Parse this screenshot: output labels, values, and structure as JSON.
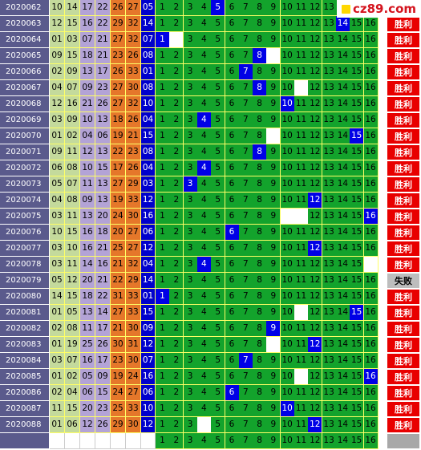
{
  "logo": {
    "text": "cz89.com",
    "icon": "yellow-square-icon"
  },
  "colors": {
    "green": "#13a32c",
    "hit": "#0000e6",
    "win": "#e80000",
    "period": "#5a5a8c",
    "gridline": "#ffff66"
  },
  "labels": {
    "win": "胜利",
    "loss": "失败"
  },
  "rows": [
    {
      "period": "2020062",
      "nums": [
        "10",
        "14",
        "17",
        "22",
        "26",
        "27"
      ],
      "blue": "05",
      "hit": 5,
      "blank": [],
      "result": ""
    },
    {
      "period": "2020063",
      "nums": [
        "12",
        "15",
        "16",
        "22",
        "29",
        "32"
      ],
      "blue": "14",
      "hit": 14,
      "blank": [],
      "result": "win"
    },
    {
      "period": "2020064",
      "nums": [
        "01",
        "03",
        "07",
        "21",
        "27",
        "32"
      ],
      "blue": "07",
      "hit": 1,
      "blank": [
        2
      ],
      "result": "win"
    },
    {
      "period": "2020065",
      "nums": [
        "09",
        "15",
        "18",
        "21",
        "23",
        "26"
      ],
      "blue": "08",
      "hit": 8,
      "blank": [
        9
      ],
      "result": "win"
    },
    {
      "period": "2020066",
      "nums": [
        "02",
        "09",
        "13",
        "17",
        "26",
        "33"
      ],
      "blue": "01",
      "hit": 7,
      "blank": [],
      "result": "win"
    },
    {
      "period": "2020067",
      "nums": [
        "04",
        "07",
        "09",
        "23",
        "27",
        "30"
      ],
      "blue": "08",
      "hit": 8,
      "blank": [
        11
      ],
      "result": "win"
    },
    {
      "period": "2020068",
      "nums": [
        "12",
        "16",
        "21",
        "26",
        "27",
        "32"
      ],
      "blue": "10",
      "hit": 10,
      "blank": [],
      "result": "win"
    },
    {
      "period": "2020069",
      "nums": [
        "03",
        "09",
        "10",
        "13",
        "18",
        "26"
      ],
      "blue": "04",
      "hit": 4,
      "blank": [],
      "result": "win"
    },
    {
      "period": "2020070",
      "nums": [
        "01",
        "02",
        "04",
        "06",
        "19",
        "21"
      ],
      "blue": "15",
      "hit": 15,
      "blank": [
        9
      ],
      "result": "win"
    },
    {
      "period": "2020071",
      "nums": [
        "09",
        "11",
        "12",
        "13",
        "22",
        "23"
      ],
      "blue": "08",
      "hit": 8,
      "blank": [],
      "result": "win"
    },
    {
      "period": "2020072",
      "nums": [
        "06",
        "08",
        "10",
        "15",
        "17",
        "26"
      ],
      "blue": "04",
      "hit": 4,
      "blank": [],
      "result": "win"
    },
    {
      "period": "2020073",
      "nums": [
        "05",
        "07",
        "11",
        "13",
        "27",
        "29"
      ],
      "blue": "03",
      "hit": 3,
      "blank": [],
      "result": "win"
    },
    {
      "period": "2020074",
      "nums": [
        "04",
        "08",
        "09",
        "13",
        "19",
        "33"
      ],
      "blue": "12",
      "hit": 12,
      "blank": [],
      "result": "win"
    },
    {
      "period": "2020075",
      "nums": [
        "03",
        "11",
        "13",
        "20",
        "24",
        "30"
      ],
      "blue": "16",
      "hit": 16,
      "blank": [
        10,
        11
      ],
      "result": "win"
    },
    {
      "period": "2020076",
      "nums": [
        "10",
        "15",
        "16",
        "18",
        "20",
        "27"
      ],
      "blue": "06",
      "hit": 6,
      "blank": [],
      "result": "win"
    },
    {
      "period": "2020077",
      "nums": [
        "03",
        "10",
        "16",
        "21",
        "25",
        "27"
      ],
      "blue": "12",
      "hit": 12,
      "blank": [],
      "result": "win"
    },
    {
      "period": "2020078",
      "nums": [
        "03",
        "11",
        "14",
        "16",
        "21",
        "32"
      ],
      "blue": "04",
      "hit": 4,
      "blank": [
        16
      ],
      "result": "win"
    },
    {
      "period": "2020079",
      "nums": [
        "05",
        "12",
        "20",
        "21",
        "22",
        "29"
      ],
      "blue": "14",
      "hit": 0,
      "blank": [],
      "result": "loss"
    },
    {
      "period": "2020080",
      "nums": [
        "14",
        "15",
        "18",
        "22",
        "31",
        "33"
      ],
      "blue": "01",
      "hit": 1,
      "blank": [],
      "result": "win"
    },
    {
      "period": "2020081",
      "nums": [
        "01",
        "05",
        "13",
        "14",
        "27",
        "33"
      ],
      "blue": "15",
      "hit": 15,
      "blank": [
        11
      ],
      "result": "win"
    },
    {
      "period": "2020082",
      "nums": [
        "02",
        "08",
        "11",
        "17",
        "21",
        "30"
      ],
      "blue": "09",
      "hit": 9,
      "blank": [],
      "result": "win"
    },
    {
      "period": "2020083",
      "nums": [
        "01",
        "19",
        "25",
        "26",
        "30",
        "31"
      ],
      "blue": "12",
      "hit": 12,
      "blank": [
        9
      ],
      "result": "win"
    },
    {
      "period": "2020084",
      "nums": [
        "03",
        "07",
        "16",
        "17",
        "23",
        "30"
      ],
      "blue": "07",
      "hit": 7,
      "blank": [],
      "result": "win"
    },
    {
      "period": "2020085",
      "nums": [
        "01",
        "02",
        "05",
        "09",
        "19",
        "24"
      ],
      "blue": "16",
      "hit": 16,
      "blank": [
        11
      ],
      "result": "win"
    },
    {
      "period": "2020086",
      "nums": [
        "02",
        "04",
        "06",
        "15",
        "24",
        "27"
      ],
      "blue": "06",
      "hit": 6,
      "blank": [],
      "result": "win"
    },
    {
      "period": "2020087",
      "nums": [
        "11",
        "15",
        "20",
        "23",
        "25",
        "33"
      ],
      "blue": "10",
      "hit": 10,
      "blank": [],
      "result": "win"
    },
    {
      "period": "2020088",
      "nums": [
        "01",
        "06",
        "12",
        "26",
        "29",
        "30"
      ],
      "blue": "12",
      "hit": 12,
      "blank": [
        4
      ],
      "result": "win"
    }
  ],
  "footer": {
    "period": "",
    "nums": [
      "",
      "",
      "",
      "",
      "",
      ""
    ],
    "blue": "",
    "hit": 0,
    "blank": [],
    "result": "pending"
  }
}
